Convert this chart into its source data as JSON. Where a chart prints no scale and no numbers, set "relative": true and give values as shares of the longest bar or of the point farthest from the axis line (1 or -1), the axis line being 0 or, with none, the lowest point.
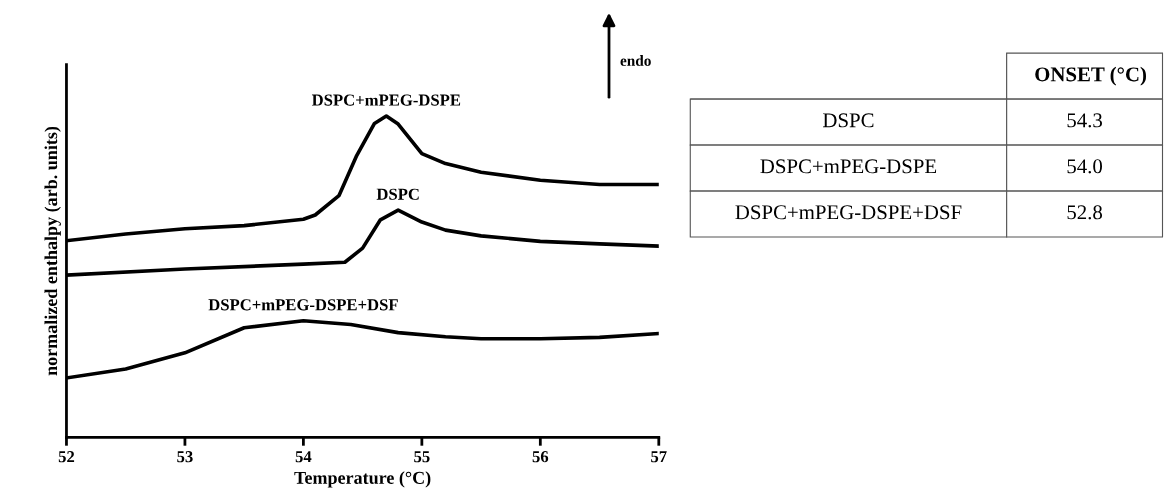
{
  "chart_data": [
    {
      "type": "line",
      "relative": true,
      "xlabel": "Temperature (°C)",
      "ylabel": "normalized enthalpy (arb. units)",
      "xlim": [
        52,
        57
      ],
      "xticks": [
        52,
        53,
        54,
        55,
        56,
        57
      ],
      "grid": false,
      "legend": false,
      "marker": "none",
      "line_style": "solid",
      "annotations": [
        "endo"
      ],
      "series": [
        {
          "name": "DSPC+mPEG-DSPE",
          "color": "#000000",
          "x": [
            52,
            52.5,
            53,
            53.5,
            54,
            54.1,
            54.3,
            54.45,
            54.6,
            54.7,
            54.8,
            55,
            55.2,
            55.5,
            56,
            56.5,
            57
          ],
          "values": [
            0.612,
            0.633,
            0.649,
            0.659,
            0.679,
            0.692,
            0.752,
            0.877,
            0.977,
            1,
            0.975,
            0.883,
            0.852,
            0.825,
            0.8,
            0.787,
            0.787
          ]
        },
        {
          "name": "DSPC",
          "color": "#000000",
          "x": [
            52,
            53,
            54,
            54.35,
            54.5,
            54.65,
            54.8,
            55,
            55.2,
            55.5,
            56,
            56.5,
            57
          ],
          "values": [
            0.505,
            0.524,
            0.539,
            0.545,
            0.589,
            0.677,
            0.707,
            0.67,
            0.645,
            0.627,
            0.61,
            0.602,
            0.595
          ]
        },
        {
          "name": "DSPC+mPEG-DSPE+DSF",
          "color": "#000000",
          "x": [
            52,
            52.5,
            53,
            53.5,
            54,
            54.4,
            54.8,
            55.2,
            55.5,
            56,
            56.5,
            57
          ],
          "values": [
            0.185,
            0.213,
            0.263,
            0.341,
            0.363,
            0.351,
            0.326,
            0.313,
            0.307,
            0.307,
            0.311,
            0.323
          ]
        }
      ]
    },
    {
      "type": "other",
      "title": "ONSET (°C)",
      "categories": [
        "DSPC",
        "DSPC+mPEG-DSPE",
        "DSPC+mPEG-DSPE+DSF"
      ],
      "annotations": [
        "54.3",
        "54.0",
        "52.8"
      ]
    }
  ]
}
